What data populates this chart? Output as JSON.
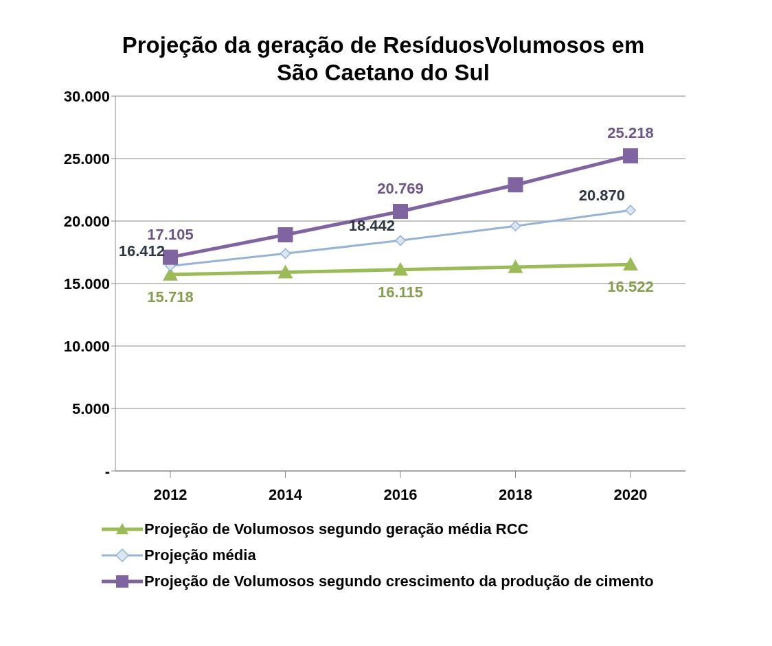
{
  "chart_data": {
    "type": "line",
    "title": "Projeção da geração de ResíduosVolumosos em São Caetano do Sul",
    "categories": [
      "2012",
      "2014",
      "2016",
      "2018",
      "2020"
    ],
    "series": [
      {
        "name": "Projeção de Volumosos segundo geração média RCC",
        "color": "#9bbb59",
        "marker": "triangle",
        "values": [
          15718,
          15900,
          16115,
          16320,
          16522
        ],
        "value_labels": [
          "15.718",
          null,
          "16.115",
          null,
          "16.522"
        ]
      },
      {
        "name": "Projeção média",
        "color": "#95b3d7",
        "marker": "diamond",
        "values": [
          16412,
          17400,
          18442,
          19600,
          20870
        ],
        "value_labels": [
          "16.412",
          null,
          "18.442",
          null,
          "20.870"
        ]
      },
      {
        "name": "Projeção de Volumosos segundo crescimento da produção de cimento",
        "color": "#8064a2",
        "marker": "square",
        "values": [
          17105,
          18900,
          20769,
          22900,
          25218
        ],
        "value_labels": [
          "17.105",
          null,
          "20.769",
          null,
          "25.218"
        ]
      }
    ],
    "ylim": [
      0,
      30000
    ],
    "yticks": [
      {
        "value": 0,
        "label": "-"
      },
      {
        "value": 5000,
        "label": "5.000"
      },
      {
        "value": 10000,
        "label": "10.000"
      },
      {
        "value": 15000,
        "label": "15.000"
      },
      {
        "value": 20000,
        "label": "20.000"
      },
      {
        "value": 25000,
        "label": "25.000"
      },
      {
        "value": 30000,
        "label": "30.000"
      }
    ],
    "grid": "y",
    "legend": "bottom"
  }
}
